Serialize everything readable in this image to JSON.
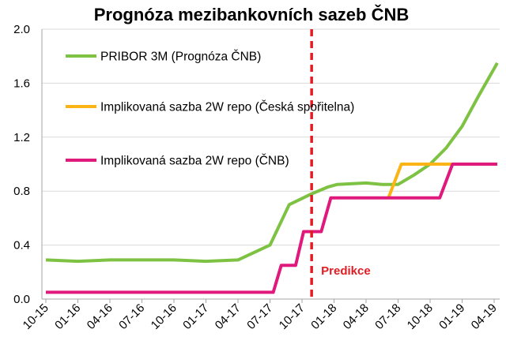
{
  "chart_data": {
    "type": "line",
    "title": "Prognóza mezibankovních sazeb ČNB",
    "xlabel": "",
    "ylabel": "",
    "ylim": [
      0,
      2.0
    ],
    "yticks": [
      "0.0",
      "0.4",
      "0.8",
      "1.2",
      "1.6",
      "2.0"
    ],
    "xticks": [
      "10-15",
      "01-16",
      "04-16",
      "07-16",
      "10-16",
      "01-17",
      "04-17",
      "07-17",
      "10-17",
      "01-18",
      "04-18",
      "07-18",
      "10-18",
      "01-19",
      "04-19"
    ],
    "grid": "horizontal",
    "legend_position": "top-left",
    "annotation": {
      "label": "Predikce",
      "x": 8.3
    },
    "colors": {
      "pribor": "#7dc242",
      "cs": "#fbb315",
      "cnb": "#e0197d",
      "predikce": "#e31b23",
      "grid": "#d9d9d9",
      "axis": "#a6a6a6"
    },
    "series": [
      {
        "name": "PRIBOR 3M (Prognóza ČNB)",
        "color": "#7dc242",
        "points": [
          [
            0,
            0.29
          ],
          [
            1,
            0.28
          ],
          [
            2,
            0.29
          ],
          [
            3,
            0.29
          ],
          [
            4,
            0.29
          ],
          [
            5,
            0.28
          ],
          [
            6,
            0.29
          ],
          [
            7,
            0.4
          ],
          [
            7.6,
            0.7
          ],
          [
            8.3,
            0.78
          ],
          [
            8.8,
            0.83
          ],
          [
            9.1,
            0.85
          ],
          [
            10,
            0.86
          ],
          [
            10.5,
            0.85
          ],
          [
            11,
            0.85
          ],
          [
            11.5,
            0.92
          ],
          [
            12,
            1.0
          ],
          [
            12.5,
            1.12
          ],
          [
            13,
            1.28
          ],
          [
            13.5,
            1.5
          ],
          [
            14.1,
            1.75
          ]
        ]
      },
      {
        "name": "Implikovaná sazba 2W repo (Česká spořitelna)",
        "color": "#fbb315",
        "points": [
          [
            10.7,
            0.75
          ],
          [
            11.1,
            1.0
          ],
          [
            12.8,
            1.0
          ]
        ]
      },
      {
        "name": "Implikovaná sazba 2W repo (ČNB)",
        "color": "#e0197d",
        "points": [
          [
            0,
            0.05
          ],
          [
            7.1,
            0.05
          ],
          [
            7.35,
            0.25
          ],
          [
            7.8,
            0.25
          ],
          [
            8.05,
            0.5
          ],
          [
            8.6,
            0.5
          ],
          [
            8.9,
            0.75
          ],
          [
            12.3,
            0.75
          ],
          [
            12.7,
            1.0
          ],
          [
            14.1,
            1.0
          ]
        ]
      }
    ]
  }
}
